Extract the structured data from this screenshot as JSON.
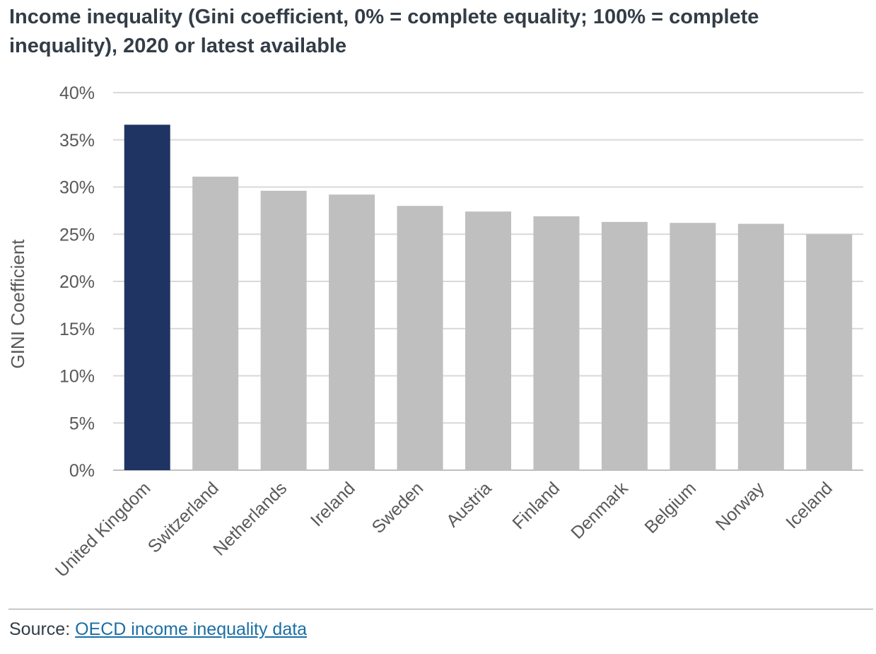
{
  "title": "Income inequality (Gini coefficient, 0% = complete equality; 100% = complete inequality), 2020 or latest available",
  "source": {
    "label": "Source:",
    "link_text": "OECD income inequality data"
  },
  "colors": {
    "highlight": "#1f3462",
    "bar": "#bfbfbf",
    "grid": "#d9d9d9",
    "text": "#595959"
  },
  "chart_data": {
    "type": "bar",
    "ylabel": "GINI Coefficient",
    "xlabel": "",
    "ylim": [
      0,
      40
    ],
    "yticks": [
      0,
      5,
      10,
      15,
      20,
      25,
      30,
      35,
      40
    ],
    "ytick_labels": [
      "0%",
      "5%",
      "10%",
      "15%",
      "20%",
      "25%",
      "30%",
      "35%",
      "40%"
    ],
    "grid": true,
    "categories": [
      "United Kingdom",
      "Switzerland",
      "Netherlands",
      "Ireland",
      "Sweden",
      "Austria",
      "Finland",
      "Denmark",
      "Belgium",
      "Norway",
      "Iceland"
    ],
    "values": [
      36.6,
      31.1,
      29.6,
      29.2,
      28.0,
      27.4,
      26.9,
      26.3,
      26.2,
      26.1,
      25.0
    ],
    "highlight_category": "United Kingdom"
  }
}
